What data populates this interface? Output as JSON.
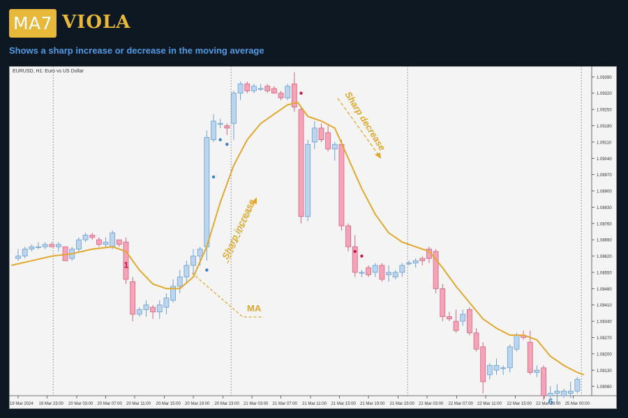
{
  "header": {
    "logo_badge": "MA7",
    "logo_word": "VIOLA",
    "subtitle": "Shows a sharp increase or decrease in the moving average"
  },
  "colors": {
    "background": "#0e1822",
    "plot_background": "#f4f4f4",
    "accent": "#e8b83a",
    "subtitle": "#4f9be3",
    "bull_fill": "#bcd5ee",
    "bull_edge": "#6b9fd0",
    "bear_fill": "#f5a3b8",
    "bear_edge": "#d6637f",
    "ma_line": "#e1a82d",
    "marker_up": "#3a7fbf",
    "marker_down": "#c2184a"
  },
  "chart_data": {
    "type": "candlestick",
    "symbol_label": "EURUSD, H1:  Euro vs US Dollar",
    "ylim": [
      1.0802,
      1.0943
    ],
    "y_ticks": [
      1.0939,
      1.0932,
      1.0925,
      1.0918,
      1.0911,
      1.0904,
      1.0897,
      1.089,
      1.0883,
      1.0876,
      1.0869,
      1.0862,
      1.0855,
      1.0848,
      1.0841,
      1.0834,
      1.0827,
      1.082,
      1.0813,
      1.0806
    ],
    "y_tick_labels": [
      "1.09390",
      "1.09320",
      "1.09250",
      "1.09180",
      "1.09110",
      "1.09040",
      "1.08970",
      "1.08900",
      "1.08830",
      "1.08760",
      "1.08690",
      "1.08620",
      "1.08550",
      "1.08480",
      "1.08410",
      "1.08340",
      "1.08270",
      "1.08200",
      "1.08130",
      "1.08060"
    ],
    "x_tick_labels": [
      "19 Mar 2024",
      "19 Mar 23:00",
      "20 Mar 03:00",
      "20 Mar 07:00",
      "20 Mar 11:00",
      "20 Mar 15:00",
      "20 Mar 19:00",
      "20 Mar 23:00",
      "21 Mar 03:00",
      "21 Mar 07:00",
      "21 Mar 11:00",
      "21 Mar 15:00",
      "21 Mar 19:00",
      "21 Mar 23:00",
      "22 Mar 03:00",
      "22 Mar 07:00",
      "22 Mar 11:00",
      "22 Mar 15:00",
      "22 Mar 19:00",
      "25 Mar 00:00"
    ],
    "x_tick_index": [
      0,
      4.3,
      8.7,
      13,
      17.3,
      21.7,
      26,
      30.4,
      34.7,
      39,
      43.4,
      47.7,
      52,
      56.4,
      60.7,
      65.1,
      69.4,
      73.8,
      78.1,
      82.4
    ],
    "day_separators": [
      5.2,
      31.6,
      57.8
    ],
    "current_price_line": 83.6,
    "candles": [
      {
        "o": 1.0861,
        "h": 1.0865,
        "l": 1.086,
        "c": 1.0862
      },
      {
        "o": 1.0862,
        "h": 1.0866,
        "l": 1.0861,
        "c": 1.0865
      },
      {
        "o": 1.0865,
        "h": 1.0867,
        "l": 1.0864,
        "c": 1.0866
      },
      {
        "o": 1.0866,
        "h": 1.0868,
        "l": 1.0865,
        "c": 1.0866
      },
      {
        "o": 1.0866,
        "h": 1.0868,
        "l": 1.0865,
        "c": 1.0867
      },
      {
        "o": 1.0867,
        "h": 1.0868,
        "l": 1.0866,
        "c": 1.0866
      },
      {
        "o": 1.0866,
        "h": 1.0868,
        "l": 1.0864,
        "c": 1.0867
      },
      {
        "o": 1.0866,
        "h": 1.0866,
        "l": 1.086,
        "c": 1.086
      },
      {
        "o": 1.0861,
        "h": 1.0866,
        "l": 1.086,
        "c": 1.0865
      },
      {
        "o": 1.0865,
        "h": 1.087,
        "l": 1.0864,
        "c": 1.0869
      },
      {
        "o": 1.0869,
        "h": 1.0872,
        "l": 1.0868,
        "c": 1.0871
      },
      {
        "o": 1.0871,
        "h": 1.0872,
        "l": 1.0869,
        "c": 1.087
      },
      {
        "o": 1.0869,
        "h": 1.087,
        "l": 1.0866,
        "c": 1.0867
      },
      {
        "o": 1.0867,
        "h": 1.087,
        "l": 1.0866,
        "c": 1.0868
      },
      {
        "o": 1.0866,
        "h": 1.0873,
        "l": 1.0865,
        "c": 1.0872
      },
      {
        "o": 1.0869,
        "h": 1.0869,
        "l": 1.0866,
        "c": 1.0867
      },
      {
        "o": 1.0868,
        "h": 1.087,
        "l": 1.085,
        "c": 1.0852
      },
      {
        "o": 1.0851,
        "h": 1.0853,
        "l": 1.0834,
        "c": 1.0837
      },
      {
        "o": 1.0837,
        "h": 1.084,
        "l": 1.0836,
        "c": 1.0839
      },
      {
        "o": 1.0839,
        "h": 1.0843,
        "l": 1.0836,
        "c": 1.0841
      },
      {
        "o": 1.084,
        "h": 1.0841,
        "l": 1.0835,
        "c": 1.0838
      },
      {
        "o": 1.0838,
        "h": 1.0843,
        "l": 1.0835,
        "c": 1.0841
      },
      {
        "o": 1.084,
        "h": 1.0846,
        "l": 1.0837,
        "c": 1.0844
      },
      {
        "o": 1.0843,
        "h": 1.0852,
        "l": 1.0842,
        "c": 1.0849
      },
      {
        "o": 1.0849,
        "h": 1.0856,
        "l": 1.0846,
        "c": 1.0853
      },
      {
        "o": 1.0853,
        "h": 1.086,
        "l": 1.085,
        "c": 1.0858
      },
      {
        "o": 1.0858,
        "h": 1.0865,
        "l": 1.0854,
        "c": 1.0862
      },
      {
        "o": 1.0862,
        "h": 1.0866,
        "l": 1.0858,
        "c": 1.0865
      },
      {
        "o": 1.0866,
        "h": 1.0916,
        "l": 1.086,
        "c": 1.0913
      },
      {
        "o": 1.0912,
        "h": 1.0923,
        "l": 1.0911,
        "c": 1.092
      },
      {
        "o": 1.0919,
        "h": 1.0921,
        "l": 1.0917,
        "c": 1.0919
      },
      {
        "o": 1.0918,
        "h": 1.0919,
        "l": 1.0914,
        "c": 1.0917
      },
      {
        "o": 1.0919,
        "h": 1.0933,
        "l": 1.0912,
        "c": 1.0932
      },
      {
        "o": 1.0932,
        "h": 1.0937,
        "l": 1.0929,
        "c": 1.0936
      },
      {
        "o": 1.0936,
        "h": 1.0937,
        "l": 1.0932,
        "c": 1.0933
      },
      {
        "o": 1.0933,
        "h": 1.0936,
        "l": 1.0932,
        "c": 1.0935
      },
      {
        "o": 1.0934,
        "h": 1.0936,
        "l": 1.0933,
        "c": 1.0934
      },
      {
        "o": 1.0935,
        "h": 1.0936,
        "l": 1.0932,
        "c": 1.0933
      },
      {
        "o": 1.0934,
        "h": 1.0935,
        "l": 1.0932,
        "c": 1.0932
      },
      {
        "o": 1.0932,
        "h": 1.0933,
        "l": 1.0929,
        "c": 1.093
      },
      {
        "o": 1.093,
        "h": 1.0936,
        "l": 1.0929,
        "c": 1.0935
      },
      {
        "o": 1.0936,
        "h": 1.0941,
        "l": 1.0924,
        "c": 1.0926
      },
      {
        "o": 1.0925,
        "h": 1.0926,
        "l": 1.0876,
        "c": 1.0879
      },
      {
        "o": 1.0879,
        "h": 1.0912,
        "l": 1.0877,
        "c": 1.091
      },
      {
        "o": 1.0911,
        "h": 1.092,
        "l": 1.0908,
        "c": 1.0917
      },
      {
        "o": 1.0917,
        "h": 1.0919,
        "l": 1.0911,
        "c": 1.0912
      },
      {
        "o": 1.0915,
        "h": 1.0918,
        "l": 1.0907,
        "c": 1.0908
      },
      {
        "o": 1.0908,
        "h": 1.0911,
        "l": 1.0903,
        "c": 1.091
      },
      {
        "o": 1.091,
        "h": 1.0912,
        "l": 1.0873,
        "c": 1.0875
      },
      {
        "o": 1.0875,
        "h": 1.0876,
        "l": 1.0864,
        "c": 1.0866
      },
      {
        "o": 1.0866,
        "h": 1.0871,
        "l": 1.0853,
        "c": 1.0855
      },
      {
        "o": 1.0855,
        "h": 1.0856,
        "l": 1.0853,
        "c": 1.0855
      },
      {
        "o": 1.0857,
        "h": 1.0858,
        "l": 1.0853,
        "c": 1.0854
      },
      {
        "o": 1.0855,
        "h": 1.0859,
        "l": 1.0853,
        "c": 1.0858
      },
      {
        "o": 1.0858,
        "h": 1.0859,
        "l": 1.0851,
        "c": 1.0852
      },
      {
        "o": 1.0854,
        "h": 1.0858,
        "l": 1.0851,
        "c": 1.0855
      },
      {
        "o": 1.0853,
        "h": 1.0856,
        "l": 1.0852,
        "c": 1.0855
      },
      {
        "o": 1.0855,
        "h": 1.0859,
        "l": 1.0853,
        "c": 1.0858
      },
      {
        "o": 1.0859,
        "h": 1.086,
        "l": 1.0858,
        "c": 1.0859
      },
      {
        "o": 1.0859,
        "h": 1.0861,
        "l": 1.0857,
        "c": 1.086
      },
      {
        "o": 1.0861,
        "h": 1.0862,
        "l": 1.0858,
        "c": 1.086
      },
      {
        "o": 1.0865,
        "h": 1.0866,
        "l": 1.0859,
        "c": 1.0861
      },
      {
        "o": 1.0864,
        "h": 1.0865,
        "l": 1.0846,
        "c": 1.0848
      },
      {
        "o": 1.0848,
        "h": 1.085,
        "l": 1.0834,
        "c": 1.0836
      },
      {
        "o": 1.0836,
        "h": 1.0838,
        "l": 1.0834,
        "c": 1.0835
      },
      {
        "o": 1.0834,
        "h": 1.0839,
        "l": 1.0829,
        "c": 1.083
      },
      {
        "o": 1.0834,
        "h": 1.0839,
        "l": 1.0832,
        "c": 1.0837
      },
      {
        "o": 1.0839,
        "h": 1.084,
        "l": 1.0828,
        "c": 1.0829
      },
      {
        "o": 1.0829,
        "h": 1.0831,
        "l": 1.0821,
        "c": 1.0822
      },
      {
        "o": 1.0823,
        "h": 1.0825,
        "l": 1.0803,
        "c": 1.0808
      },
      {
        "o": 1.0811,
        "h": 1.0816,
        "l": 1.0809,
        "c": 1.0815
      },
      {
        "o": 1.0813,
        "h": 1.0818,
        "l": 1.0811,
        "c": 1.0815
      },
      {
        "o": 1.0814,
        "h": 1.0815,
        "l": 1.0811,
        "c": 1.0814
      },
      {
        "o": 1.0814,
        "h": 1.0824,
        "l": 1.0812,
        "c": 1.0823
      },
      {
        "o": 1.0822,
        "h": 1.0829,
        "l": 1.0821,
        "c": 1.0828
      },
      {
        "o": 1.0828,
        "h": 1.083,
        "l": 1.0826,
        "c": 1.0827
      },
      {
        "o": 1.0825,
        "h": 1.083,
        "l": 1.0811,
        "c": 1.0812
      },
      {
        "o": 1.0812,
        "h": 1.0815,
        "l": 1.081,
        "c": 1.0813
      },
      {
        "o": 1.0814,
        "h": 1.0815,
        "l": 1.08,
        "c": 1.0802
      },
      {
        "o": 1.0802,
        "h": 1.0806,
        "l": 1.0801,
        "c": 1.0803
      },
      {
        "o": 1.0803,
        "h": 1.0807,
        "l": 1.0799,
        "c": 1.0804
      },
      {
        "o": 1.0802,
        "h": 1.0805,
        "l": 1.0801,
        "c": 1.0804
      },
      {
        "o": 1.0803,
        "h": 1.0808,
        "l": 1.0801,
        "c": 1.0804
      },
      {
        "o": 1.0804,
        "h": 1.081,
        "l": 1.0803,
        "c": 1.0809
      }
    ],
    "ma": [
      {
        "x": -1,
        "y": 1.0858
      },
      {
        "x": 2,
        "y": 1.086
      },
      {
        "x": 5,
        "y": 1.0862
      },
      {
        "x": 8,
        "y": 1.0863
      },
      {
        "x": 11,
        "y": 1.0865
      },
      {
        "x": 14,
        "y": 1.0866
      },
      {
        "x": 16,
        "y": 1.0864
      },
      {
        "x": 18,
        "y": 1.0856
      },
      {
        "x": 20,
        "y": 1.085
      },
      {
        "x": 22,
        "y": 1.0848
      },
      {
        "x": 24,
        "y": 1.0848
      },
      {
        "x": 26,
        "y": 1.0853
      },
      {
        "x": 28,
        "y": 1.0866
      },
      {
        "x": 30,
        "y": 1.0885
      },
      {
        "x": 32,
        "y": 1.0901
      },
      {
        "x": 34,
        "y": 1.0912
      },
      {
        "x": 36,
        "y": 1.0919
      },
      {
        "x": 38,
        "y": 1.0923
      },
      {
        "x": 40,
        "y": 1.0927
      },
      {
        "x": 41.5,
        "y": 1.0928
      },
      {
        "x": 43,
        "y": 1.0922
      },
      {
        "x": 45,
        "y": 1.092
      },
      {
        "x": 47,
        "y": 1.0917
      },
      {
        "x": 49,
        "y": 1.0904
      },
      {
        "x": 51,
        "y": 1.0891
      },
      {
        "x": 53,
        "y": 1.088
      },
      {
        "x": 55,
        "y": 1.0872
      },
      {
        "x": 57,
        "y": 1.0868
      },
      {
        "x": 59,
        "y": 1.0866
      },
      {
        "x": 61,
        "y": 1.0864
      },
      {
        "x": 63,
        "y": 1.0857
      },
      {
        "x": 65,
        "y": 1.0849
      },
      {
        "x": 67,
        "y": 1.0842
      },
      {
        "x": 69,
        "y": 1.0835
      },
      {
        "x": 71,
        "y": 1.0831
      },
      {
        "x": 73,
        "y": 1.0828
      },
      {
        "x": 75,
        "y": 1.0828
      },
      {
        "x": 77,
        "y": 1.0826
      },
      {
        "x": 79,
        "y": 1.0819
      },
      {
        "x": 81,
        "y": 1.0815
      },
      {
        "x": 83,
        "y": 1.0812
      },
      {
        "x": 84,
        "y": 1.0811
      }
    ],
    "markers_up": [
      {
        "x": 28,
        "y": 1.0856
      },
      {
        "x": 29,
        "y": 1.0896
      },
      {
        "x": 30,
        "y": 1.0912
      },
      {
        "x": 31,
        "y": 1.091
      }
    ],
    "markers_down": [
      {
        "x": 42,
        "y": 1.0932
      },
      {
        "x": 50,
        "y": 1.0864
      },
      {
        "x": 51,
        "y": 1.0862
      }
    ],
    "annotations": {
      "signal_1": "1",
      "signal_6": "6",
      "sharp_increase": "Sharp increase",
      "sharp_decrease": "Sharp decrease",
      "ma_label": "MA"
    }
  }
}
